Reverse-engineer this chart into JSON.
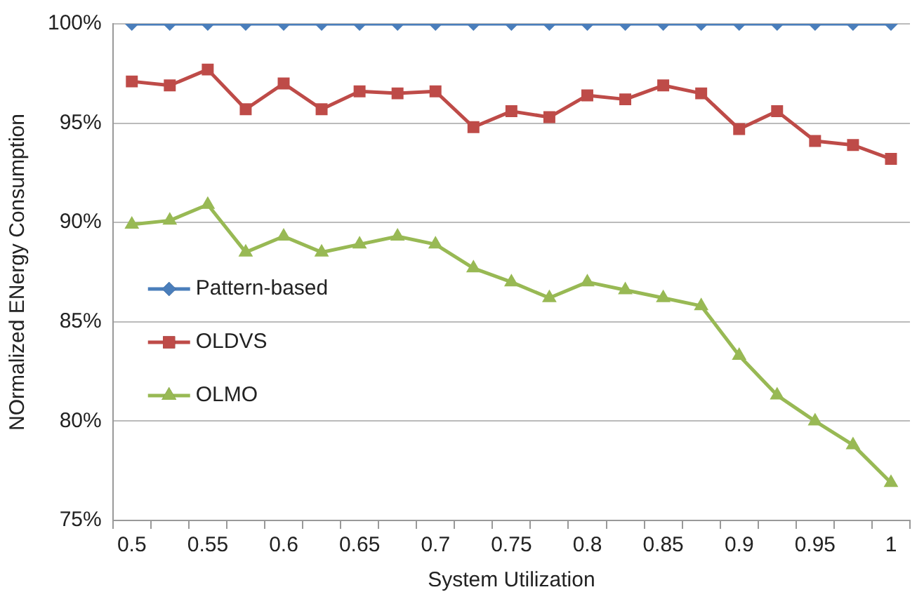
{
  "chart_data": {
    "type": "line",
    "xlabel": "System Utilization",
    "ylabel": "NOrmalized ENergy Consumption",
    "categories": [
      "0.5",
      null,
      "0.55",
      null,
      "0.6",
      null,
      "0.65",
      null,
      "0.7",
      null,
      "0.75",
      null,
      "0.8",
      null,
      "0.85",
      null,
      "0.9",
      null,
      "0.95",
      null,
      "1"
    ],
    "series": [
      {
        "name": "Pattern-based",
        "color": "#4a7ebb",
        "marker": "diamond",
        "values": [
          100,
          100,
          100,
          100,
          100,
          100,
          100,
          100,
          100,
          100,
          100,
          100,
          100,
          100,
          100,
          100,
          100,
          100,
          100,
          100,
          100
        ]
      },
      {
        "name": "OLDVS",
        "color": "#be4b48",
        "marker": "square",
        "values": [
          97.1,
          96.9,
          97.7,
          95.7,
          97.0,
          95.7,
          96.6,
          96.5,
          96.6,
          94.8,
          95.6,
          95.3,
          96.4,
          96.2,
          96.9,
          96.5,
          94.7,
          95.6,
          94.1,
          93.9,
          93.2
        ]
      },
      {
        "name": "OLMO",
        "color": "#98b954",
        "marker": "triangle",
        "values": [
          89.9,
          90.1,
          90.9,
          88.5,
          89.3,
          88.5,
          88.9,
          89.3,
          88.9,
          87.7,
          87.0,
          86.2,
          87.0,
          86.6,
          86.2,
          85.8,
          83.3,
          81.3,
          80.0,
          78.8,
          76.9
        ]
      }
    ],
    "ylim": [
      75,
      100
    ],
    "yticks": [
      {
        "value": 75,
        "label": "75%"
      },
      {
        "value": 80,
        "label": "80%"
      },
      {
        "value": 85,
        "label": "85%"
      },
      {
        "value": 90,
        "label": "90%"
      },
      {
        "value": 95,
        "label": "95%"
      },
      {
        "value": 100,
        "label": "100%"
      }
    ],
    "grid": "y",
    "legend": "center left"
  }
}
